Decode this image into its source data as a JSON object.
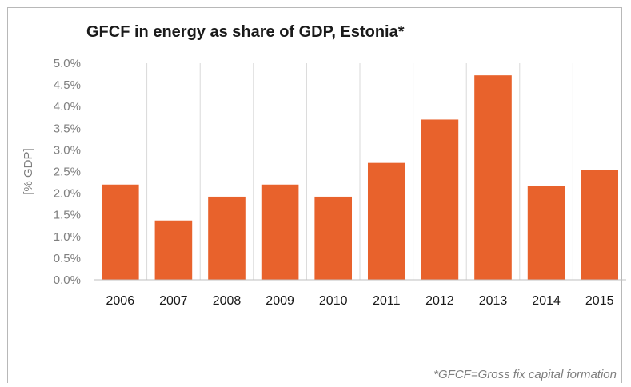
{
  "chart_data": {
    "type": "bar",
    "title": "GFCF in energy as share of GDP, Estonia*",
    "ylabel": "[% GDP]",
    "xlabel": "",
    "categories": [
      "2006",
      "2007",
      "2008",
      "2009",
      "2010",
      "2011",
      "2012",
      "2013",
      "2014",
      "2015"
    ],
    "values": [
      2.2,
      1.37,
      1.92,
      2.2,
      1.92,
      2.7,
      3.7,
      4.72,
      2.16,
      2.53
    ],
    "ylim": [
      0,
      5.0
    ],
    "yticks": [
      "0.0%",
      "0.5%",
      "1.0%",
      "1.5%",
      "2.0%",
      "2.5%",
      "3.0%",
      "3.5%",
      "4.0%",
      "4.5%",
      "5.0%"
    ],
    "bar_color": "#e8622c",
    "grid": "vertical",
    "legend": "none"
  },
  "footnote": "*GFCF=Gross fix capital formation"
}
